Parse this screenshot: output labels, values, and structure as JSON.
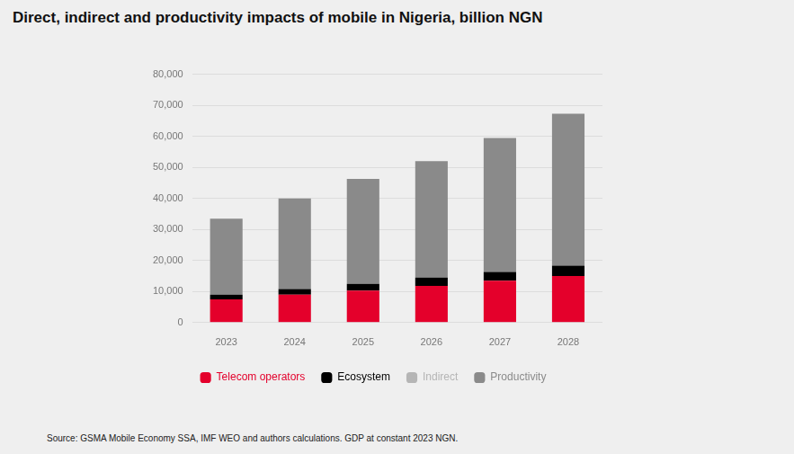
{
  "chart_data": {
    "type": "bar",
    "title": "Direct, indirect and productivity impacts of mobile in Nigeria, billion NGN",
    "source": "Source: GSMA Mobile Economy SSA, IMF WEO and authors calculations. GDP at constant 2023 NGN.",
    "categories": [
      "2023",
      "2024",
      "2025",
      "2026",
      "2027",
      "2028"
    ],
    "series": [
      {
        "name": "Telecom operators",
        "color": "#e4002b",
        "values": [
          7500,
          9000,
          10300,
          11800,
          13500,
          15000
        ]
      },
      {
        "name": "Ecosystem",
        "color": "#000000",
        "values": [
          1500,
          1800,
          2200,
          2700,
          2800,
          3300
        ]
      },
      {
        "name": "Indirect",
        "color": "#b5b5b5",
        "values": [
          0,
          0,
          0,
          0,
          0,
          0
        ]
      },
      {
        "name": "Productivity",
        "color": "#8a8a8a",
        "values": [
          24500,
          29200,
          33800,
          37500,
          43200,
          49000
        ]
      }
    ],
    "ylim": [
      0,
      80000
    ],
    "yticks": [
      0,
      {
        "value": 10000,
        "label": "10,000"
      },
      {
        "value": 20000,
        "label": "20,000"
      },
      {
        "value": 30000,
        "label": "30,000"
      },
      {
        "value": 40000,
        "label": "40,000"
      },
      {
        "value": 50000,
        "label": "50,000"
      },
      {
        "value": 60000,
        "label": "60,000"
      },
      {
        "value": 70000,
        "label": "70,000"
      },
      {
        "value": 80000,
        "label": "80,000"
      }
    ],
    "stacked": true,
    "grid": true,
    "legend": "bottom"
  }
}
